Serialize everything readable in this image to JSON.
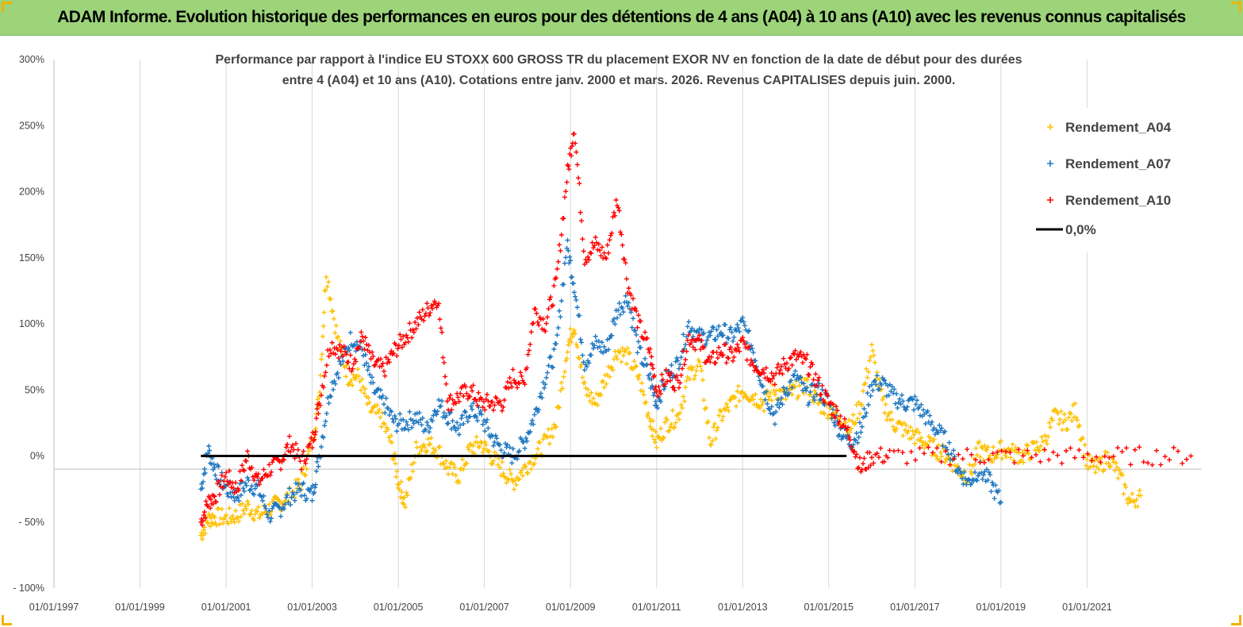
{
  "banner": {
    "title": "ADAM Informe. Evolution historique des performances en euros pour des détentions de 4 ans (A04) à 10 ans (A10) avec les revenus connus capitalisés",
    "background": "#9dd47a"
  },
  "chart_data": {
    "type": "scatter",
    "title_lines": [
      "Performance par rapport à l'indice EU STOXX 600 GROSS TR  du placement EXOR NV en fonction de la date de début pour des durées",
      "entre 4 (A04) et 10 ans (A10). Cotations entre janv. 2000 et mars. 2026. Revenus CAPITALISES depuis juin. 2000."
    ],
    "xlabel": "",
    "ylabel": "",
    "x_ticks": [
      "01/01/1997",
      "01/01/1999",
      "01/01/2001",
      "01/01/2003",
      "01/01/2005",
      "01/01/2007",
      "01/01/2009",
      "01/01/2011",
      "01/01/2013",
      "01/01/2015",
      "01/01/2017",
      "01/01/2019",
      "01/01/2021"
    ],
    "y_ticks": [
      "- 100%",
      "- 50%",
      "0%",
      "50%",
      "100%",
      "150%",
      "200%",
      "250%",
      "300%"
    ],
    "ylim": [
      -100,
      300
    ],
    "xlim": [
      "1997-01-01",
      "2023-09-01"
    ],
    "grid": "vertical",
    "legend_position": "top-right",
    "series": [
      {
        "name": "Rendement_A04",
        "color": "#ffc000",
        "marker": "plus",
        "points": [
          [
            "2000-06-01",
            -60
          ],
          [
            "2000-08-01",
            -48
          ],
          [
            "2000-10-01",
            -46
          ],
          [
            "2001-01-01",
            -47
          ],
          [
            "2001-04-01",
            -45
          ],
          [
            "2001-07-01",
            -38
          ],
          [
            "2001-10-01",
            -45
          ],
          [
            "2002-01-01",
            -40
          ],
          [
            "2002-04-01",
            -35
          ],
          [
            "2002-07-01",
            -30
          ],
          [
            "2002-10-01",
            -20
          ],
          [
            "2003-01-01",
            10
          ],
          [
            "2003-03-01",
            45
          ],
          [
            "2003-05-01",
            140
          ],
          [
            "2003-08-01",
            90
          ],
          [
            "2003-11-01",
            60
          ],
          [
            "2004-02-01",
            60
          ],
          [
            "2004-05-01",
            35
          ],
          [
            "2004-08-01",
            30
          ],
          [
            "2004-11-01",
            10
          ],
          [
            "2005-01-01",
            -20
          ],
          [
            "2005-03-01",
            -35
          ],
          [
            "2005-06-01",
            5
          ],
          [
            "2005-09-01",
            10
          ],
          [
            "2005-12-01",
            5
          ],
          [
            "2006-03-01",
            -10
          ],
          [
            "2006-06-01",
            -15
          ],
          [
            "2006-09-01",
            5
          ],
          [
            "2006-12-01",
            10
          ],
          [
            "2007-03-01",
            0
          ],
          [
            "2007-06-01",
            -10
          ],
          [
            "2007-09-01",
            -20
          ],
          [
            "2007-12-01",
            -10
          ],
          [
            "2008-03-01",
            0
          ],
          [
            "2008-06-01",
            10
          ],
          [
            "2008-09-01",
            25
          ],
          [
            "2008-12-01",
            80
          ],
          [
            "2009-02-01",
            100
          ],
          [
            "2009-05-01",
            50
          ],
          [
            "2009-08-01",
            40
          ],
          [
            "2009-11-01",
            60
          ],
          [
            "2010-02-01",
            80
          ],
          [
            "2010-05-01",
            75
          ],
          [
            "2010-08-01",
            60
          ],
          [
            "2010-11-01",
            30
          ],
          [
            "2011-01-01",
            10
          ],
          [
            "2011-04-01",
            25
          ],
          [
            "2011-07-01",
            30
          ],
          [
            "2011-10-01",
            60
          ],
          [
            "2012-01-01",
            70
          ],
          [
            "2012-04-01",
            10
          ],
          [
            "2012-07-01",
            30
          ],
          [
            "2012-10-01",
            40
          ],
          [
            "2013-01-01",
            50
          ],
          [
            "2013-04-01",
            45
          ],
          [
            "2013-07-01",
            40
          ],
          [
            "2013-10-01",
            50
          ],
          [
            "2014-01-01",
            45
          ],
          [
            "2014-04-01",
            50
          ],
          [
            "2014-07-01",
            55
          ],
          [
            "2014-10-01",
            40
          ],
          [
            "2015-01-01",
            35
          ],
          [
            "2015-04-01",
            30
          ],
          [
            "2015-07-01",
            20
          ],
          [
            "2015-10-01",
            40
          ],
          [
            "2016-01-01",
            80
          ],
          [
            "2016-04-01",
            40
          ],
          [
            "2016-07-01",
            25
          ],
          [
            "2016-10-01",
            20
          ],
          [
            "2017-01-01",
            15
          ],
          [
            "2017-04-01",
            10
          ],
          [
            "2017-07-01",
            5
          ],
          [
            "2017-10-01",
            0
          ],
          [
            "2018-01-01",
            -10
          ],
          [
            "2018-04-01",
            -15
          ],
          [
            "2018-07-01",
            5
          ],
          [
            "2018-10-01",
            0
          ],
          [
            "2019-01-01",
            5
          ],
          [
            "2019-04-01",
            3
          ],
          [
            "2019-07-01",
            0
          ],
          [
            "2019-10-01",
            5
          ],
          [
            "2020-01-01",
            10
          ],
          [
            "2020-04-01",
            30
          ],
          [
            "2020-07-01",
            25
          ],
          [
            "2020-10-01",
            35
          ],
          [
            "2021-01-01",
            -5
          ],
          [
            "2021-04-01",
            -10
          ],
          [
            "2021-07-01",
            0
          ],
          [
            "2021-10-01",
            -15
          ],
          [
            "2022-01-01",
            -35
          ],
          [
            "2022-04-01",
            -30
          ]
        ]
      },
      {
        "name": "Rendement_A07",
        "color": "#1f77c0",
        "marker": "plus",
        "points": [
          [
            "2000-06-01",
            -25
          ],
          [
            "2000-08-01",
            5
          ],
          [
            "2000-10-01",
            -10
          ],
          [
            "2001-01-01",
            -25
          ],
          [
            "2001-04-01",
            -30
          ],
          [
            "2001-07-01",
            -20
          ],
          [
            "2001-10-01",
            -25
          ],
          [
            "2002-01-01",
            -45
          ],
          [
            "2002-04-01",
            -40
          ],
          [
            "2002-07-01",
            -30
          ],
          [
            "2002-10-01",
            -25
          ],
          [
            "2003-01-01",
            -30
          ],
          [
            "2003-03-01",
            0
          ],
          [
            "2003-06-01",
            50
          ],
          [
            "2003-09-01",
            70
          ],
          [
            "2003-12-01",
            90
          ],
          [
            "2004-03-01",
            80
          ],
          [
            "2004-06-01",
            50
          ],
          [
            "2004-09-01",
            40
          ],
          [
            "2004-12-01",
            25
          ],
          [
            "2005-03-01",
            25
          ],
          [
            "2005-06-01",
            30
          ],
          [
            "2005-09-01",
            20
          ],
          [
            "2005-12-01",
            40
          ],
          [
            "2006-03-01",
            30
          ],
          [
            "2006-06-01",
            20
          ],
          [
            "2006-09-01",
            35
          ],
          [
            "2006-12-01",
            30
          ],
          [
            "2007-03-01",
            15
          ],
          [
            "2007-06-01",
            5
          ],
          [
            "2007-09-01",
            0
          ],
          [
            "2007-12-01",
            10
          ],
          [
            "2008-03-01",
            30
          ],
          [
            "2008-06-01",
            60
          ],
          [
            "2008-09-01",
            80
          ],
          [
            "2008-12-01",
            160
          ],
          [
            "2009-02-01",
            130
          ],
          [
            "2009-05-01",
            70
          ],
          [
            "2009-08-01",
            85
          ],
          [
            "2009-11-01",
            80
          ],
          [
            "2010-02-01",
            110
          ],
          [
            "2010-05-01",
            120
          ],
          [
            "2010-08-01",
            80
          ],
          [
            "2010-11-01",
            60
          ],
          [
            "2011-01-01",
            40
          ],
          [
            "2011-04-01",
            60
          ],
          [
            "2011-07-01",
            70
          ],
          [
            "2011-10-01",
            100
          ],
          [
            "2012-01-01",
            90
          ],
          [
            "2012-04-01",
            90
          ],
          [
            "2012-07-01",
            95
          ],
          [
            "2012-10-01",
            90
          ],
          [
            "2013-01-01",
            100
          ],
          [
            "2013-04-01",
            80
          ],
          [
            "2013-07-01",
            50
          ],
          [
            "2013-10-01",
            30
          ],
          [
            "2014-01-01",
            50
          ],
          [
            "2014-04-01",
            60
          ],
          [
            "2014-07-01",
            45
          ],
          [
            "2014-10-01",
            50
          ],
          [
            "2015-01-01",
            40
          ],
          [
            "2015-04-01",
            20
          ],
          [
            "2015-07-01",
            10
          ],
          [
            "2015-10-01",
            20
          ],
          [
            "2016-01-01",
            55
          ],
          [
            "2016-04-01",
            55
          ],
          [
            "2016-07-01",
            45
          ],
          [
            "2016-10-01",
            40
          ],
          [
            "2017-01-01",
            40
          ],
          [
            "2017-04-01",
            30
          ],
          [
            "2017-07-01",
            20
          ],
          [
            "2017-10-01",
            10
          ],
          [
            "2018-01-01",
            -10
          ],
          [
            "2018-04-01",
            -20
          ],
          [
            "2018-07-01",
            -10
          ],
          [
            "2018-10-01",
            -20
          ],
          [
            "2019-01-01",
            -35
          ]
        ]
      },
      {
        "name": "Rendement_A10",
        "color": "#ff0000",
        "marker": "plus",
        "points": [
          [
            "2000-06-01",
            -50
          ],
          [
            "2000-08-01",
            -35
          ],
          [
            "2000-10-01",
            -30
          ],
          [
            "2001-01-01",
            -15
          ],
          [
            "2001-04-01",
            -25
          ],
          [
            "2001-07-01",
            0
          ],
          [
            "2001-10-01",
            -20
          ],
          [
            "2002-01-01",
            -10
          ],
          [
            "2002-04-01",
            -5
          ],
          [
            "2002-07-01",
            10
          ],
          [
            "2002-10-01",
            -5
          ],
          [
            "2003-01-01",
            10
          ],
          [
            "2003-03-01",
            40
          ],
          [
            "2003-06-01",
            85
          ],
          [
            "2003-09-01",
            80
          ],
          [
            "2003-12-01",
            70
          ],
          [
            "2004-03-01",
            90
          ],
          [
            "2004-06-01",
            70
          ],
          [
            "2004-09-01",
            65
          ],
          [
            "2004-12-01",
            80
          ],
          [
            "2005-03-01",
            90
          ],
          [
            "2005-06-01",
            100
          ],
          [
            "2005-09-01",
            110
          ],
          [
            "2005-12-01",
            120
          ],
          [
            "2006-03-01",
            40
          ],
          [
            "2006-06-01",
            45
          ],
          [
            "2006-09-01",
            50
          ],
          [
            "2006-12-01",
            40
          ],
          [
            "2007-03-01",
            40
          ],
          [
            "2007-06-01",
            40
          ],
          [
            "2007-09-01",
            60
          ],
          [
            "2007-12-01",
            55
          ],
          [
            "2008-03-01",
            110
          ],
          [
            "2008-06-01",
            100
          ],
          [
            "2008-09-01",
            130
          ],
          [
            "2008-12-01",
            210
          ],
          [
            "2009-02-01",
            250
          ],
          [
            "2009-05-01",
            150
          ],
          [
            "2009-08-01",
            160
          ],
          [
            "2009-11-01",
            150
          ],
          [
            "2010-02-01",
            195
          ],
          [
            "2010-05-01",
            130
          ],
          [
            "2010-08-01",
            100
          ],
          [
            "2010-11-01",
            80
          ],
          [
            "2011-01-01",
            50
          ],
          [
            "2011-04-01",
            60
          ],
          [
            "2011-07-01",
            55
          ],
          [
            "2011-10-01",
            90
          ],
          [
            "2012-01-01",
            85
          ],
          [
            "2012-04-01",
            70
          ],
          [
            "2012-07-01",
            80
          ],
          [
            "2012-10-01",
            75
          ],
          [
            "2013-01-01",
            85
          ],
          [
            "2013-04-01",
            70
          ],
          [
            "2013-07-01",
            65
          ],
          [
            "2013-10-01",
            60
          ],
          [
            "2014-01-01",
            70
          ],
          [
            "2014-04-01",
            75
          ],
          [
            "2014-07-01",
            70
          ],
          [
            "2014-10-01",
            55
          ],
          [
            "2015-01-01",
            40
          ],
          [
            "2015-04-01",
            30
          ],
          [
            "2015-07-01",
            15
          ],
          [
            "2015-10-01",
            -10
          ],
          [
            "2016-01-01",
            0
          ],
          [
            "2016-06-01",
            0
          ],
          [
            "2017-06-01",
            0
          ],
          [
            "2018-06-01",
            0
          ],
          [
            "2019-06-01",
            0
          ],
          [
            "2020-06-01",
            0
          ],
          [
            "2021-06-01",
            0
          ],
          [
            "2022-06-01",
            0
          ],
          [
            "2023-06-01",
            0
          ]
        ]
      }
    ],
    "reference_line": {
      "name": "0,0%",
      "value": 0,
      "color": "#000000",
      "from": "2000-06-01",
      "to": "2015-06-01"
    }
  }
}
